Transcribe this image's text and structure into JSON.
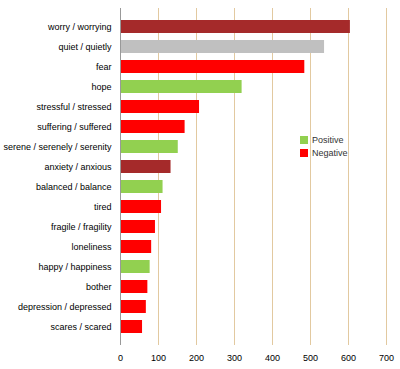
{
  "chart_data": {
    "type": "bar",
    "orientation": "horizontal",
    "categories": [
      "worry / worrying",
      "quiet / quietly",
      "fear",
      "hope",
      "stressful / stressed",
      "suffering / suffered",
      "serene / serenely / serenity",
      "anxiety / anxious",
      "balanced / balance",
      "tired",
      "fragile / fragility",
      "loneliness",
      "happy / happiness",
      "bother",
      "depression / depressed",
      "scares / scared"
    ],
    "values": [
      605,
      537,
      485,
      320,
      208,
      170,
      152,
      133,
      112,
      108,
      92,
      82,
      78,
      72,
      68,
      58
    ],
    "colors": [
      "#a52a2a",
      "#c0c0c0",
      "#ff0000",
      "#92d050",
      "#ff0000",
      "#ff0000",
      "#92d050",
      "#a52a2a",
      "#92d050",
      "#ff0000",
      "#ff0000",
      "#ff0000",
      "#92d050",
      "#ff0000",
      "#ff0000",
      "#ff0000"
    ],
    "legend_items": [
      {
        "name": "Positive",
        "color": "#92d050"
      },
      {
        "name": "Negative",
        "color": "#ff0000"
      }
    ],
    "legend": "right",
    "xlim": [
      0,
      700
    ],
    "xticks": [
      0,
      100,
      200,
      300,
      400,
      500,
      600,
      700
    ],
    "grid": true
  }
}
